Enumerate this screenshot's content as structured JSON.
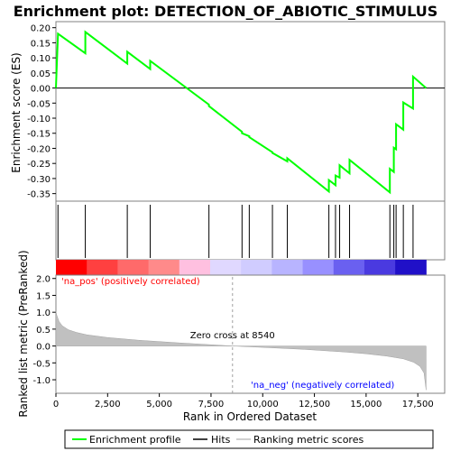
{
  "chart_data": {
    "title": "Enrichment plot: DETECTION_OF_ABIOTIC_STIMULUS",
    "xlabel": "Rank in Ordered Dataset",
    "xlim": [
      0,
      18800
    ],
    "x_ticks": [
      0,
      2500,
      5000,
      7500,
      10000,
      12500,
      15000,
      17500
    ],
    "x_tick_labels": [
      "0",
      "2,500",
      "5,000",
      "7,500",
      "10,000",
      "12,500",
      "15,000",
      "17,500"
    ],
    "panels": [
      {
        "type": "line",
        "name": "enrichment",
        "ylabel": "Enrichment score (ES)",
        "ylim": [
          -0.375,
          0.22
        ],
        "y_ticks": [
          0.2,
          0.15,
          0.1,
          0.05,
          0.0,
          -0.05,
          -0.1,
          -0.15,
          -0.2,
          -0.25,
          -0.3,
          -0.35
        ],
        "y_tick_labels": [
          "0.20",
          "0.15",
          "0.10",
          "0.05",
          "0.00",
          "-0.05",
          "-0.10",
          "-0.15",
          "-0.20",
          "-0.25",
          "-0.30",
          "-0.35"
        ],
        "color": "#00ff00",
        "x": [
          0,
          99,
          1421,
          1421,
          3451,
          3451,
          4560,
          4560,
          7400,
          7400,
          9000,
          9000,
          9350,
          9350,
          10470,
          10470,
          11190,
          11190,
          13200,
          13200,
          13520,
          13520,
          13720,
          13720,
          14200,
          14200,
          16150,
          16150,
          16340,
          16340,
          16450,
          16450,
          16800,
          16800,
          17270,
          17270,
          17900
        ],
        "y": [
          0.0,
          0.18,
          0.115,
          0.186,
          0.081,
          0.12,
          0.063,
          0.09,
          -0.055,
          -0.06,
          -0.145,
          -0.15,
          -0.16,
          -0.163,
          -0.213,
          -0.215,
          -0.243,
          -0.233,
          -0.343,
          -0.305,
          -0.322,
          -0.29,
          -0.297,
          -0.256,
          -0.283,
          -0.238,
          -0.346,
          -0.268,
          -0.278,
          -0.198,
          -0.203,
          -0.12,
          -0.138,
          -0.048,
          -0.068,
          0.038,
          0.0
        ]
      },
      {
        "type": "hits",
        "name": "hits",
        "hit_ranks": [
          99,
          1421,
          3451,
          4560,
          7400,
          9000,
          9350,
          10470,
          11190,
          13200,
          13520,
          13720,
          14200,
          16150,
          16340,
          16450,
          16800,
          17270
        ]
      },
      {
        "type": "area",
        "name": "ranking-metric",
        "ylabel": "Ranked list metric (PreRanked)",
        "ylim": [
          -1.4,
          2.1
        ],
        "y_ticks": [
          2.0,
          1.5,
          1.0,
          0.5,
          0.0,
          -0.5,
          -1.0
        ],
        "y_tick_labels": [
          "2.0",
          "1.5",
          "1.0",
          "0.5",
          "0.0",
          "-0.5",
          "-1.0"
        ],
        "color": "#c0c0c0",
        "x": [
          0,
          50,
          150,
          300,
          600,
          1000,
          1500,
          2500,
          4000,
          6000,
          8540,
          10000,
          12000,
          14000,
          15000,
          16000,
          16800,
          17300,
          17600,
          17800,
          17900
        ],
        "y": [
          1.02,
          0.9,
          0.73,
          0.6,
          0.48,
          0.4,
          0.33,
          0.25,
          0.17,
          0.09,
          0.0,
          -0.04,
          -0.1,
          -0.18,
          -0.23,
          -0.3,
          -0.38,
          -0.48,
          -0.6,
          -0.8,
          -1.3
        ]
      }
    ],
    "annotations": {
      "pos_label": "'na_pos' (positively correlated)",
      "neg_label": "'na_neg' (negatively correlated)",
      "zero_cross": "Zero cross at 8540",
      "zero_cross_rank": 8540
    },
    "legend": {
      "placement": "bottom",
      "entries": [
        {
          "label": "Enrichment profile",
          "color": "#00ff00"
        },
        {
          "label": "Hits",
          "color": "#000000"
        },
        {
          "label": "Ranking metric scores",
          "color": "#c0c0c0"
        }
      ]
    }
  }
}
